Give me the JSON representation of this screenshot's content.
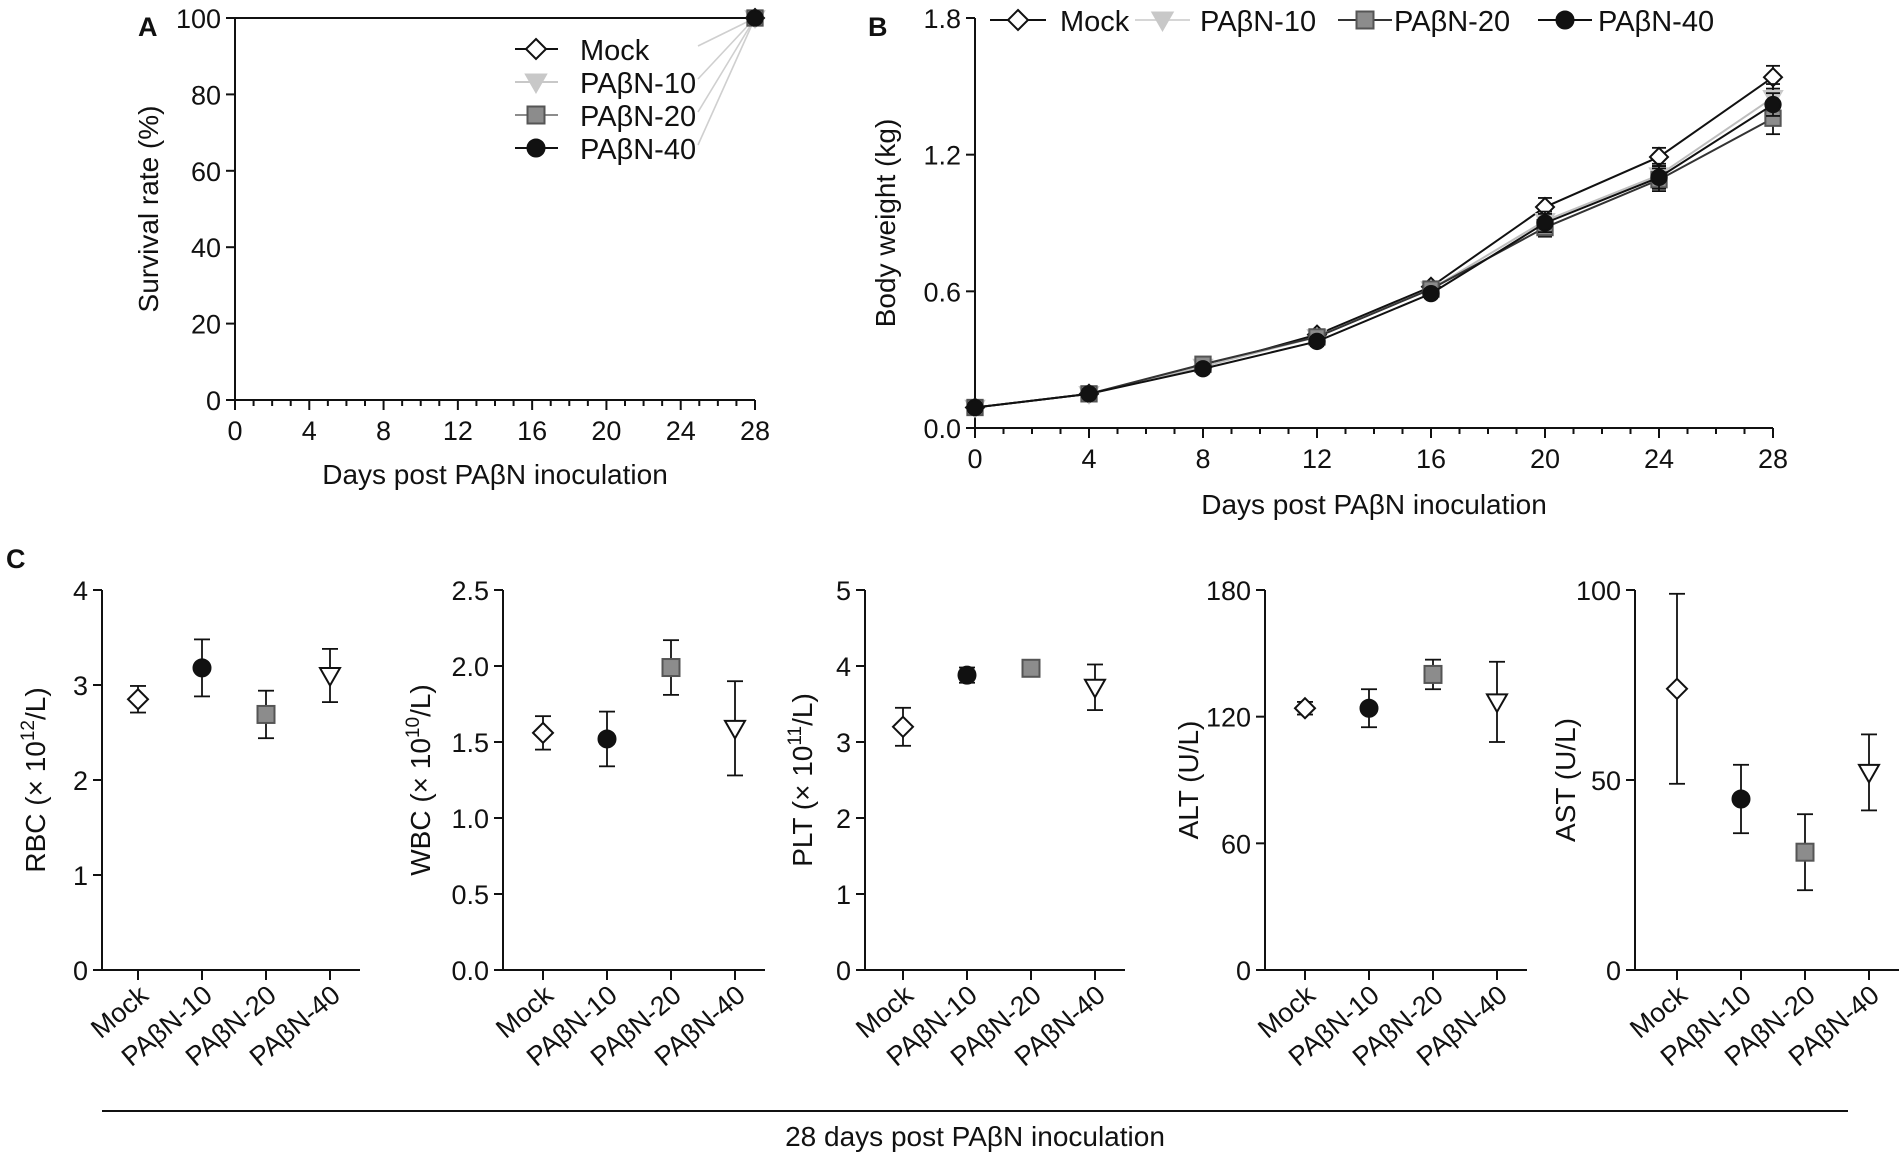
{
  "figure_title": "28 days post PAβN inoculation",
  "colors": {
    "mock": "#111111",
    "paben10": "#c8c8c8",
    "paben20": "#8c8c8c",
    "paben40": "#111111",
    "axis": "#111111"
  },
  "legend": [
    "Mock",
    "PAβN-10",
    "PAβN-20",
    "PAβN-40"
  ],
  "chart_data": [
    {
      "id": "A",
      "type": "line",
      "panel_label": "A",
      "xlabel": "Days post PAβN inoculation",
      "ylabel": "Survival rate (%)",
      "xlim": [
        0,
        28
      ],
      "ylim": [
        0,
        100
      ],
      "xticks": [
        0,
        4,
        8,
        12,
        16,
        20,
        24,
        28
      ],
      "yticks": [
        0,
        20,
        40,
        60,
        80,
        100
      ],
      "series": [
        {
          "name": "Mock",
          "marker": "diamond-open",
          "x": [
            0,
            28
          ],
          "y": [
            100,
            100
          ]
        },
        {
          "name": "PAβN-10",
          "marker": "triangle-down",
          "x": [
            0,
            28
          ],
          "y": [
            100,
            100
          ]
        },
        {
          "name": "PAβN-20",
          "marker": "square",
          "x": [
            0,
            28
          ],
          "y": [
            100,
            100
          ]
        },
        {
          "name": "PAβN-40",
          "marker": "circle",
          "x": [
            0,
            28
          ],
          "y": [
            100,
            100
          ]
        }
      ]
    },
    {
      "id": "B",
      "type": "line",
      "panel_label": "B",
      "xlabel": "Days post PAβN inoculation",
      "ylabel": "Body weight (kg)",
      "xlim": [
        0,
        28
      ],
      "ylim": [
        0,
        1.8
      ],
      "xticks": [
        0,
        4,
        8,
        12,
        16,
        20,
        24,
        28
      ],
      "yticks": [
        0.0,
        0.6,
        1.2,
        1.8
      ],
      "ytick_labels": [
        "0.0",
        "0.6",
        "1.2",
        "1.8"
      ],
      "series": [
        {
          "name": "Mock",
          "marker": "diamond-open",
          "x": [
            0,
            4,
            8,
            12,
            16,
            20,
            24,
            28
          ],
          "y": [
            0.09,
            0.15,
            0.27,
            0.41,
            0.62,
            0.97,
            1.19,
            1.54
          ],
          "err": [
            0.02,
            0.02,
            0.02,
            0.02,
            0.02,
            0.04,
            0.04,
            0.05
          ]
        },
        {
          "name": "PAβN-10",
          "marker": "triangle-down",
          "x": [
            0,
            4,
            8,
            12,
            16,
            20,
            24,
            28
          ],
          "y": [
            0.09,
            0.15,
            0.27,
            0.4,
            0.61,
            0.91,
            1.11,
            1.45
          ],
          "err": [
            0.02,
            0.02,
            0.02,
            0.02,
            0.02,
            0.04,
            0.05,
            0.06
          ]
        },
        {
          "name": "PAβN-20",
          "marker": "square",
          "x": [
            0,
            4,
            8,
            12,
            16,
            20,
            24,
            28
          ],
          "y": [
            0.09,
            0.15,
            0.28,
            0.4,
            0.61,
            0.88,
            1.09,
            1.36
          ],
          "err": [
            0.02,
            0.02,
            0.02,
            0.02,
            0.02,
            0.04,
            0.05,
            0.07
          ]
        },
        {
          "name": "PAβN-40",
          "marker": "circle",
          "x": [
            0,
            4,
            8,
            12,
            16,
            20,
            24,
            28
          ],
          "y": [
            0.09,
            0.15,
            0.26,
            0.38,
            0.59,
            0.9,
            1.1,
            1.42
          ],
          "err": [
            0.02,
            0.02,
            0.02,
            0.02,
            0.02,
            0.04,
            0.05,
            0.05
          ]
        }
      ]
    },
    {
      "id": "C1",
      "type": "scatter",
      "panel_label": "C",
      "ylabel": "RBC (× 10",
      "ylabel_sup": "12",
      "ylabel_tail": "/L)",
      "categories": [
        "Mock",
        "PAβN-10",
        "PAβN-20",
        "PAβN-40"
      ],
      "ylim": [
        0,
        4
      ],
      "yticks": [
        0,
        1,
        2,
        3,
        4
      ],
      "ytick_labels": [
        "0",
        "1",
        "2",
        "3",
        "4"
      ],
      "values": [
        2.85,
        3.18,
        2.69,
        3.1
      ],
      "err": [
        0.14,
        0.3,
        0.25,
        0.28
      ],
      "markers": [
        "diamond-open",
        "circle",
        "square",
        "triangle-down-open"
      ]
    },
    {
      "id": "C2",
      "type": "scatter",
      "panel_label": "",
      "ylabel": "WBC (× 10",
      "ylabel_sup": "10",
      "ylabel_tail": "/L)",
      "categories": [
        "Mock",
        "PAβN-10",
        "PAβN-20",
        "PAβN-40"
      ],
      "ylim": [
        0,
        2.5
      ],
      "yticks": [
        0,
        0.5,
        1.0,
        1.5,
        2.0,
        2.5
      ],
      "ytick_labels": [
        "0.0",
        "0.5",
        "1.0",
        "1.5",
        "2.0",
        "2.5"
      ],
      "values": [
        1.56,
        1.52,
        1.99,
        1.59
      ],
      "err": [
        0.11,
        0.18,
        0.18,
        0.31
      ],
      "markers": [
        "diamond-open",
        "circle",
        "square",
        "triangle-down-open"
      ]
    },
    {
      "id": "C3",
      "type": "scatter",
      "panel_label": "",
      "ylabel": "PLT (× 10",
      "ylabel_sup": "11",
      "ylabel_tail": "/L)",
      "categories": [
        "Mock",
        "PAβN-10",
        "PAβN-20",
        "PAβN-40"
      ],
      "ylim": [
        0,
        5
      ],
      "yticks": [
        0,
        1,
        2,
        3,
        4,
        5
      ],
      "ytick_labels": [
        "0",
        "1",
        "2",
        "3",
        "4",
        "5"
      ],
      "values": [
        3.2,
        3.88,
        3.97,
        3.72
      ],
      "err": [
        0.25,
        0.1,
        0.07,
        0.3
      ],
      "markers": [
        "diamond-open",
        "circle",
        "square",
        "triangle-down-open"
      ]
    },
    {
      "id": "C4",
      "type": "scatter",
      "panel_label": "",
      "ylabel": "ALT (U/L)",
      "categories": [
        "Mock",
        "PAβN-10",
        "PAβN-20",
        "PAβN-40"
      ],
      "ylim": [
        0,
        180
      ],
      "yticks": [
        0,
        60,
        120,
        180
      ],
      "ytick_labels": [
        "0",
        "60",
        "120",
        "180"
      ],
      "values": [
        124,
        124,
        140,
        127
      ],
      "err": [
        3,
        9,
        7,
        19
      ],
      "markers": [
        "diamond-open",
        "circle",
        "square",
        "triangle-down-open"
      ]
    },
    {
      "id": "C5",
      "type": "scatter",
      "panel_label": "",
      "ylabel": "AST (U/L)",
      "categories": [
        "Mock",
        "PAβN-10",
        "PAβN-20",
        "PAβN-40"
      ],
      "ylim": [
        0,
        100
      ],
      "yticks": [
        0,
        50,
        100
      ],
      "ytick_labels": [
        "0",
        "50",
        "100"
      ],
      "values": [
        74,
        45,
        31,
        52
      ],
      "err": [
        25,
        9,
        10,
        10
      ],
      "markers": [
        "diamond-open",
        "circle",
        "square",
        "triangle-down-open"
      ]
    }
  ]
}
